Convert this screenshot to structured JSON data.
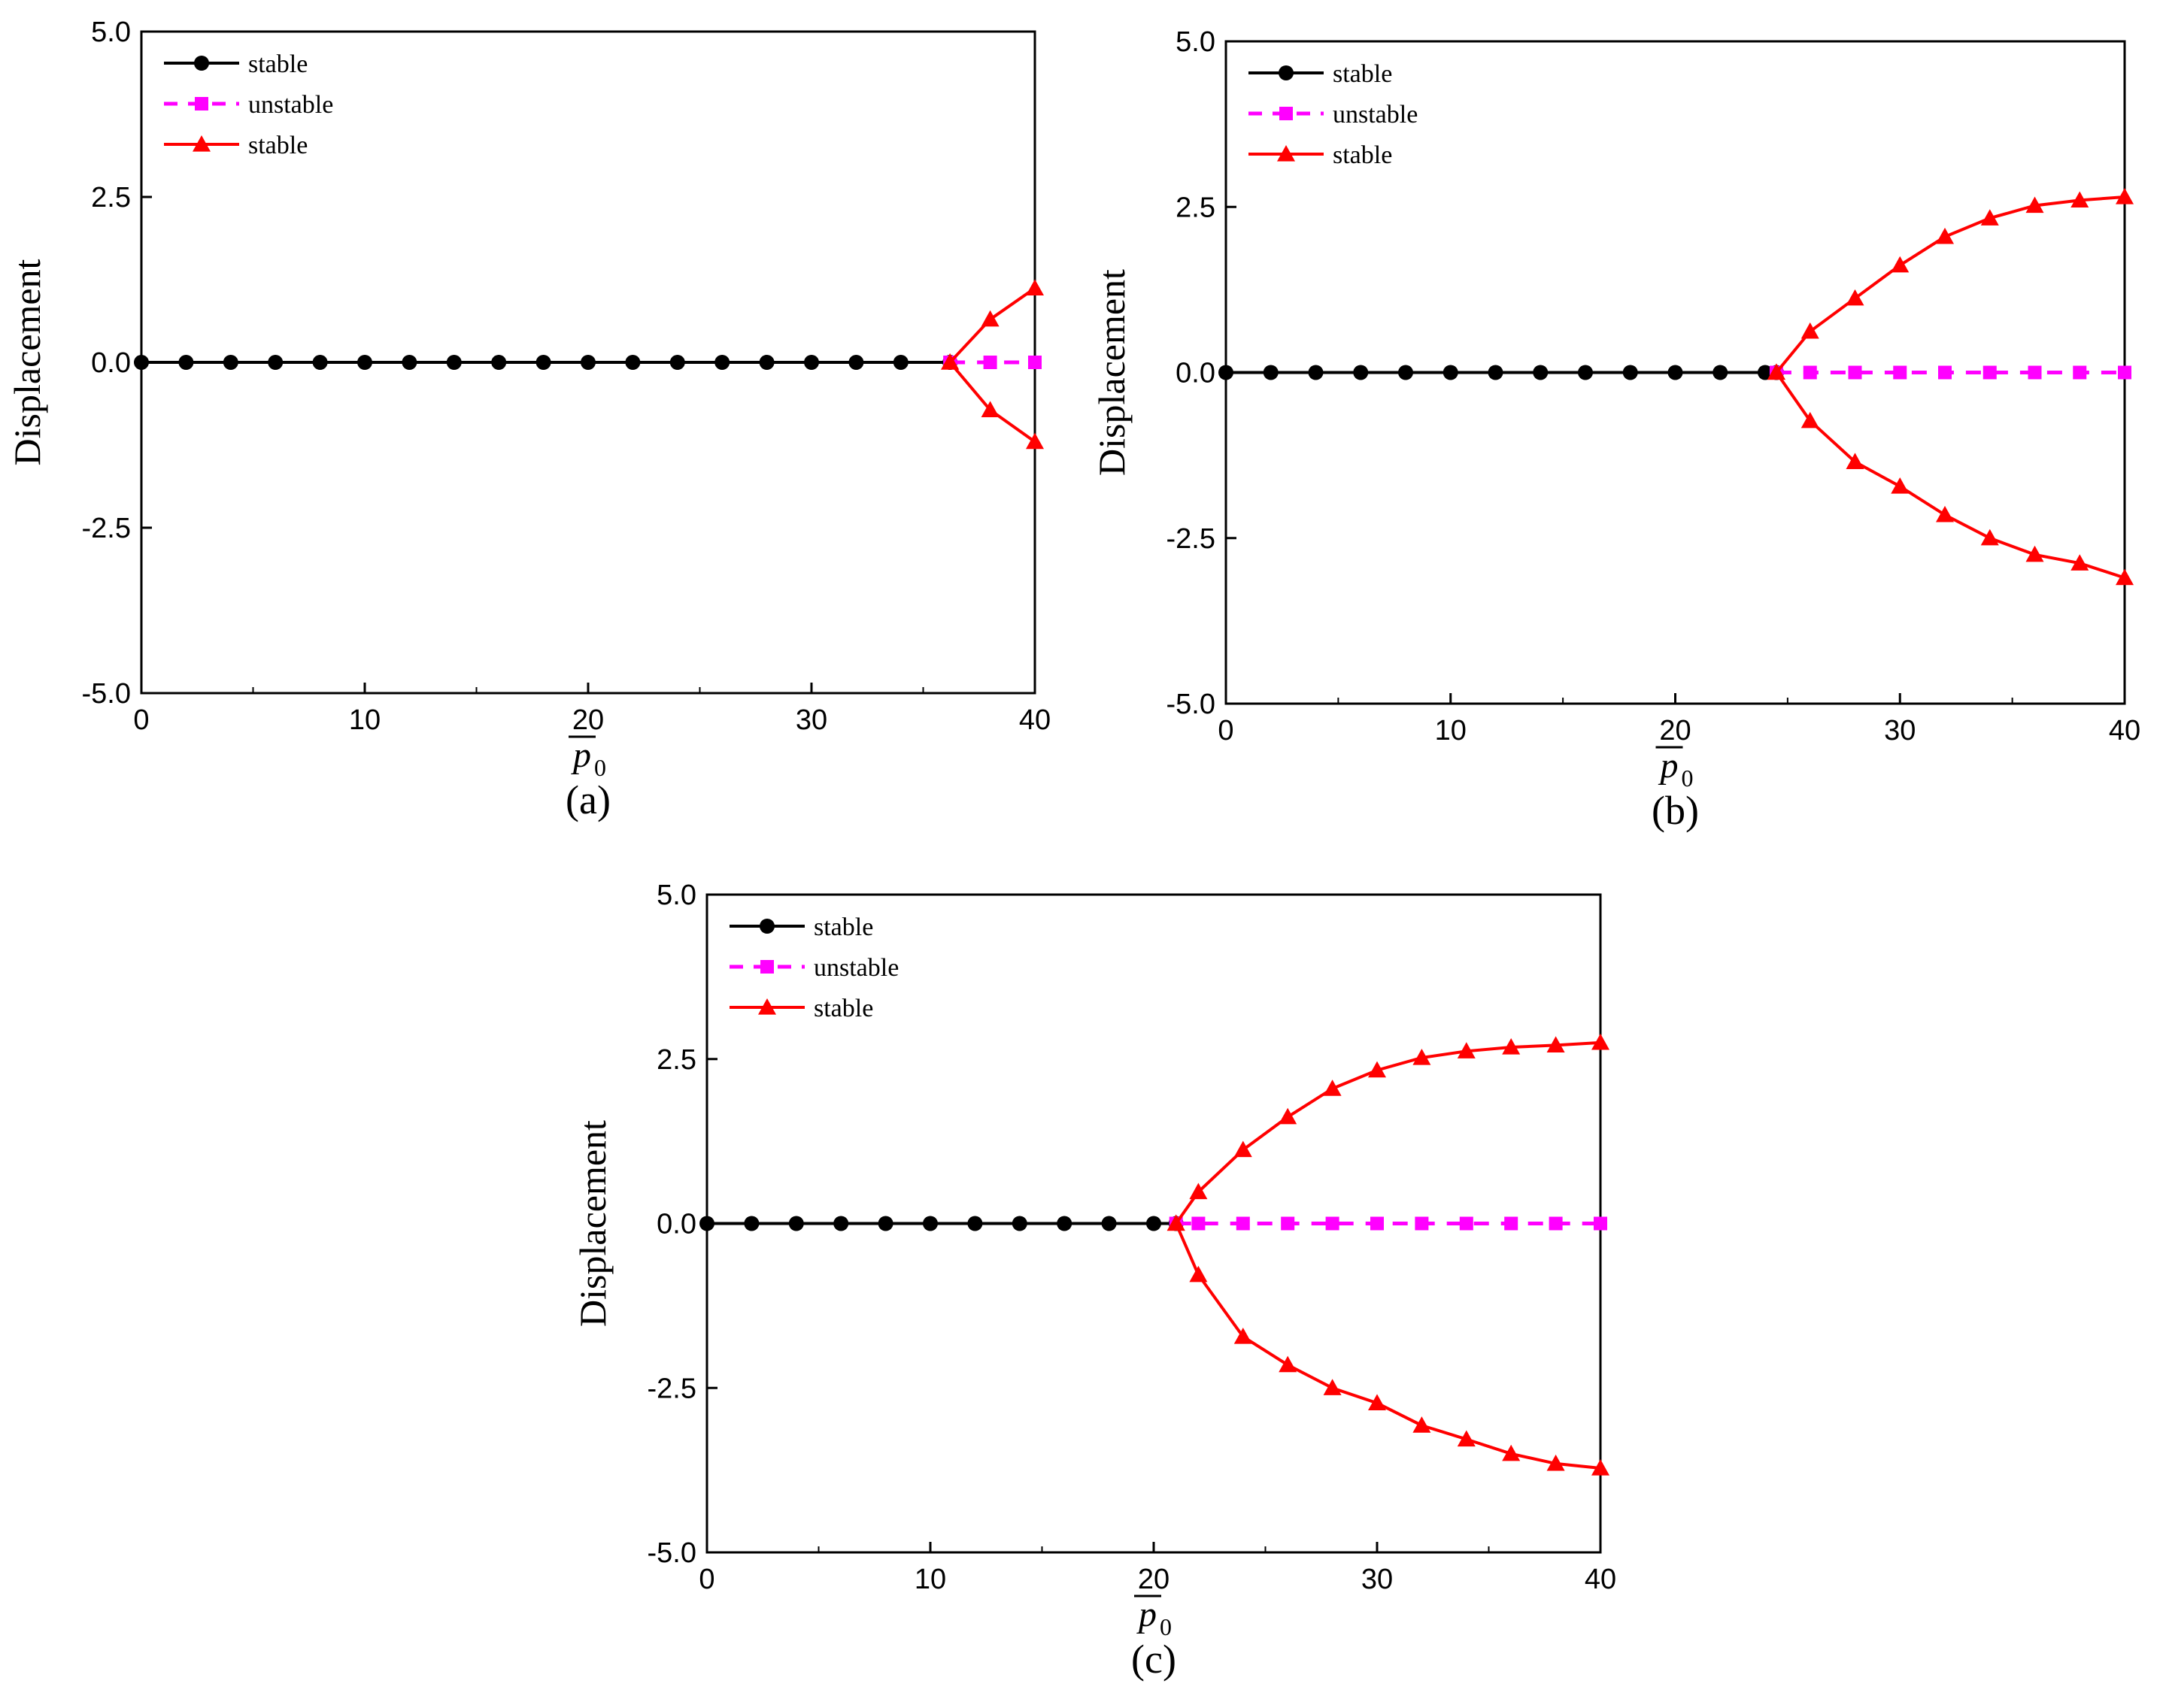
{
  "chart_data": [
    {
      "type": "line",
      "panel_label": "a",
      "xlabel": "p",
      "xlabel_subscript": "0",
      "ylabel": "Displacement",
      "xlim": [
        0,
        40
      ],
      "ylim": [
        -5.0,
        5.0
      ],
      "xticks": [
        0,
        10,
        20,
        30,
        40
      ],
      "xtick_labels": [
        "0",
        "10",
        "20",
        "30",
        "40"
      ],
      "yticks": [
        5.0,
        2.5,
        0.0,
        -2.5,
        -5.0
      ],
      "ytick_labels": [
        "5.0",
        "2.5",
        "0.0",
        "-2.5",
        "-5.0"
      ],
      "caption": "(a)",
      "legend": [
        "stable",
        "unstable",
        "stable"
      ],
      "series": [
        {
          "name": "stable",
          "color": "#000000",
          "marker": "circle",
          "style": "solid",
          "x": [
            0,
            2,
            4,
            6,
            8,
            10,
            12,
            14,
            16,
            18,
            20,
            22,
            24,
            26,
            28,
            30,
            32,
            34,
            36.2
          ],
          "y": [
            0,
            0,
            0,
            0,
            0,
            0,
            0,
            0,
            0,
            0,
            0,
            0,
            0,
            0,
            0,
            0,
            0,
            0,
            0
          ]
        },
        {
          "name": "unstable",
          "color": "#ff00ff",
          "marker": "square",
          "style": "dashed",
          "x": [
            36.2,
            38,
            40
          ],
          "y": [
            0,
            0,
            0
          ]
        },
        {
          "name": "stable",
          "color": "#ff0000",
          "marker": "triangle",
          "style": "solid",
          "x": [
            36.2,
            38,
            40
          ],
          "y": [
            0,
            0.65,
            1.12
          ]
        },
        {
          "name": "stable",
          "color": "#ff0000",
          "marker": "triangle",
          "style": "solid",
          "x": [
            36.2,
            38,
            40
          ],
          "y": [
            0,
            -0.72,
            -1.2
          ]
        }
      ]
    },
    {
      "type": "line",
      "panel_label": "b",
      "xlabel": "p",
      "xlabel_subscript": "0",
      "ylabel": "Displacement",
      "xlim": [
        0,
        40
      ],
      "ylim": [
        -5.0,
        5.0
      ],
      "xticks": [
        0,
        10,
        20,
        30,
        40
      ],
      "xtick_labels": [
        "0",
        "10",
        "20",
        "30",
        "40"
      ],
      "yticks": [
        5.0,
        2.5,
        0.0,
        -2.5,
        -5.0
      ],
      "ytick_labels": [
        "5.0",
        "2.5",
        "0.0",
        "-2.5",
        "-5.0"
      ],
      "caption": "(b)",
      "legend": [
        "stable",
        "unstable",
        "stable"
      ],
      "series": [
        {
          "name": "stable",
          "color": "#000000",
          "marker": "circle",
          "style": "solid",
          "x": [
            0,
            2,
            4,
            6,
            8,
            10,
            12,
            14,
            16,
            18,
            20,
            22,
            24,
            24.5
          ],
          "y": [
            0,
            0,
            0,
            0,
            0,
            0,
            0,
            0,
            0,
            0,
            0,
            0,
            0,
            0
          ]
        },
        {
          "name": "unstable",
          "color": "#ff00ff",
          "marker": "square",
          "style": "dashed",
          "x": [
            24.5,
            26,
            28,
            30,
            32,
            34,
            36,
            38,
            40
          ],
          "y": [
            0,
            0,
            0,
            0,
            0,
            0,
            0,
            0,
            0
          ]
        },
        {
          "name": "stable",
          "color": "#ff0000",
          "marker": "triangle",
          "style": "solid",
          "x": [
            24.5,
            26,
            28,
            30,
            32,
            34,
            36,
            38,
            40
          ],
          "y": [
            0,
            0.62,
            1.12,
            1.62,
            2.05,
            2.33,
            2.52,
            2.6,
            2.65
          ]
        },
        {
          "name": "stable",
          "color": "#ff0000",
          "marker": "triangle",
          "style": "solid",
          "x": [
            24.5,
            26,
            28,
            30,
            32,
            34,
            36,
            38,
            40
          ],
          "y": [
            0,
            -0.73,
            -1.35,
            -1.72,
            -2.15,
            -2.5,
            -2.75,
            -2.88,
            -3.1
          ]
        }
      ]
    },
    {
      "type": "line",
      "panel_label": "c",
      "xlabel": "p",
      "xlabel_subscript": "0",
      "ylabel": "Displacement",
      "xlim": [
        0,
        40
      ],
      "ylim": [
        -5.0,
        5.0
      ],
      "xticks": [
        0,
        10,
        20,
        30,
        40
      ],
      "xtick_labels": [
        "0",
        "10",
        "20",
        "30",
        "40"
      ],
      "yticks": [
        5.0,
        2.5,
        0.0,
        -2.5,
        -5.0
      ],
      "ytick_labels": [
        "5.0",
        "2.5",
        "0.0",
        "-2.5",
        "-5.0"
      ],
      "caption": "(c)",
      "legend": [
        "stable",
        "unstable",
        "stable"
      ],
      "series": [
        {
          "name": "stable",
          "color": "#000000",
          "marker": "circle",
          "style": "solid",
          "x": [
            0,
            2,
            4,
            6,
            8,
            10,
            12,
            14,
            16,
            18,
            20,
            21
          ],
          "y": [
            0,
            0,
            0,
            0,
            0,
            0,
            0,
            0,
            0,
            0,
            0,
            0
          ]
        },
        {
          "name": "unstable",
          "color": "#ff00ff",
          "marker": "square",
          "style": "dashed",
          "x": [
            21,
            22,
            24,
            26,
            28,
            30,
            32,
            34,
            36,
            38,
            40
          ],
          "y": [
            0,
            0,
            0,
            0,
            0,
            0,
            0,
            0,
            0,
            0,
            0
          ]
        },
        {
          "name": "stable",
          "color": "#ff0000",
          "marker": "triangle",
          "style": "solid",
          "x": [
            21,
            22,
            24,
            26,
            28,
            30,
            32,
            34,
            36,
            38,
            40
          ],
          "y": [
            0,
            0.48,
            1.12,
            1.62,
            2.05,
            2.33,
            2.52,
            2.62,
            2.68,
            2.71,
            2.75
          ]
        },
        {
          "name": "stable",
          "color": "#ff0000",
          "marker": "triangle",
          "style": "solid",
          "x": [
            21,
            22,
            24,
            26,
            28,
            30,
            32,
            34,
            36,
            38,
            40
          ],
          "y": [
            0,
            -0.78,
            -1.72,
            -2.15,
            -2.5,
            -2.73,
            -3.07,
            -3.28,
            -3.5,
            -3.65,
            -3.72
          ]
        }
      ]
    }
  ]
}
